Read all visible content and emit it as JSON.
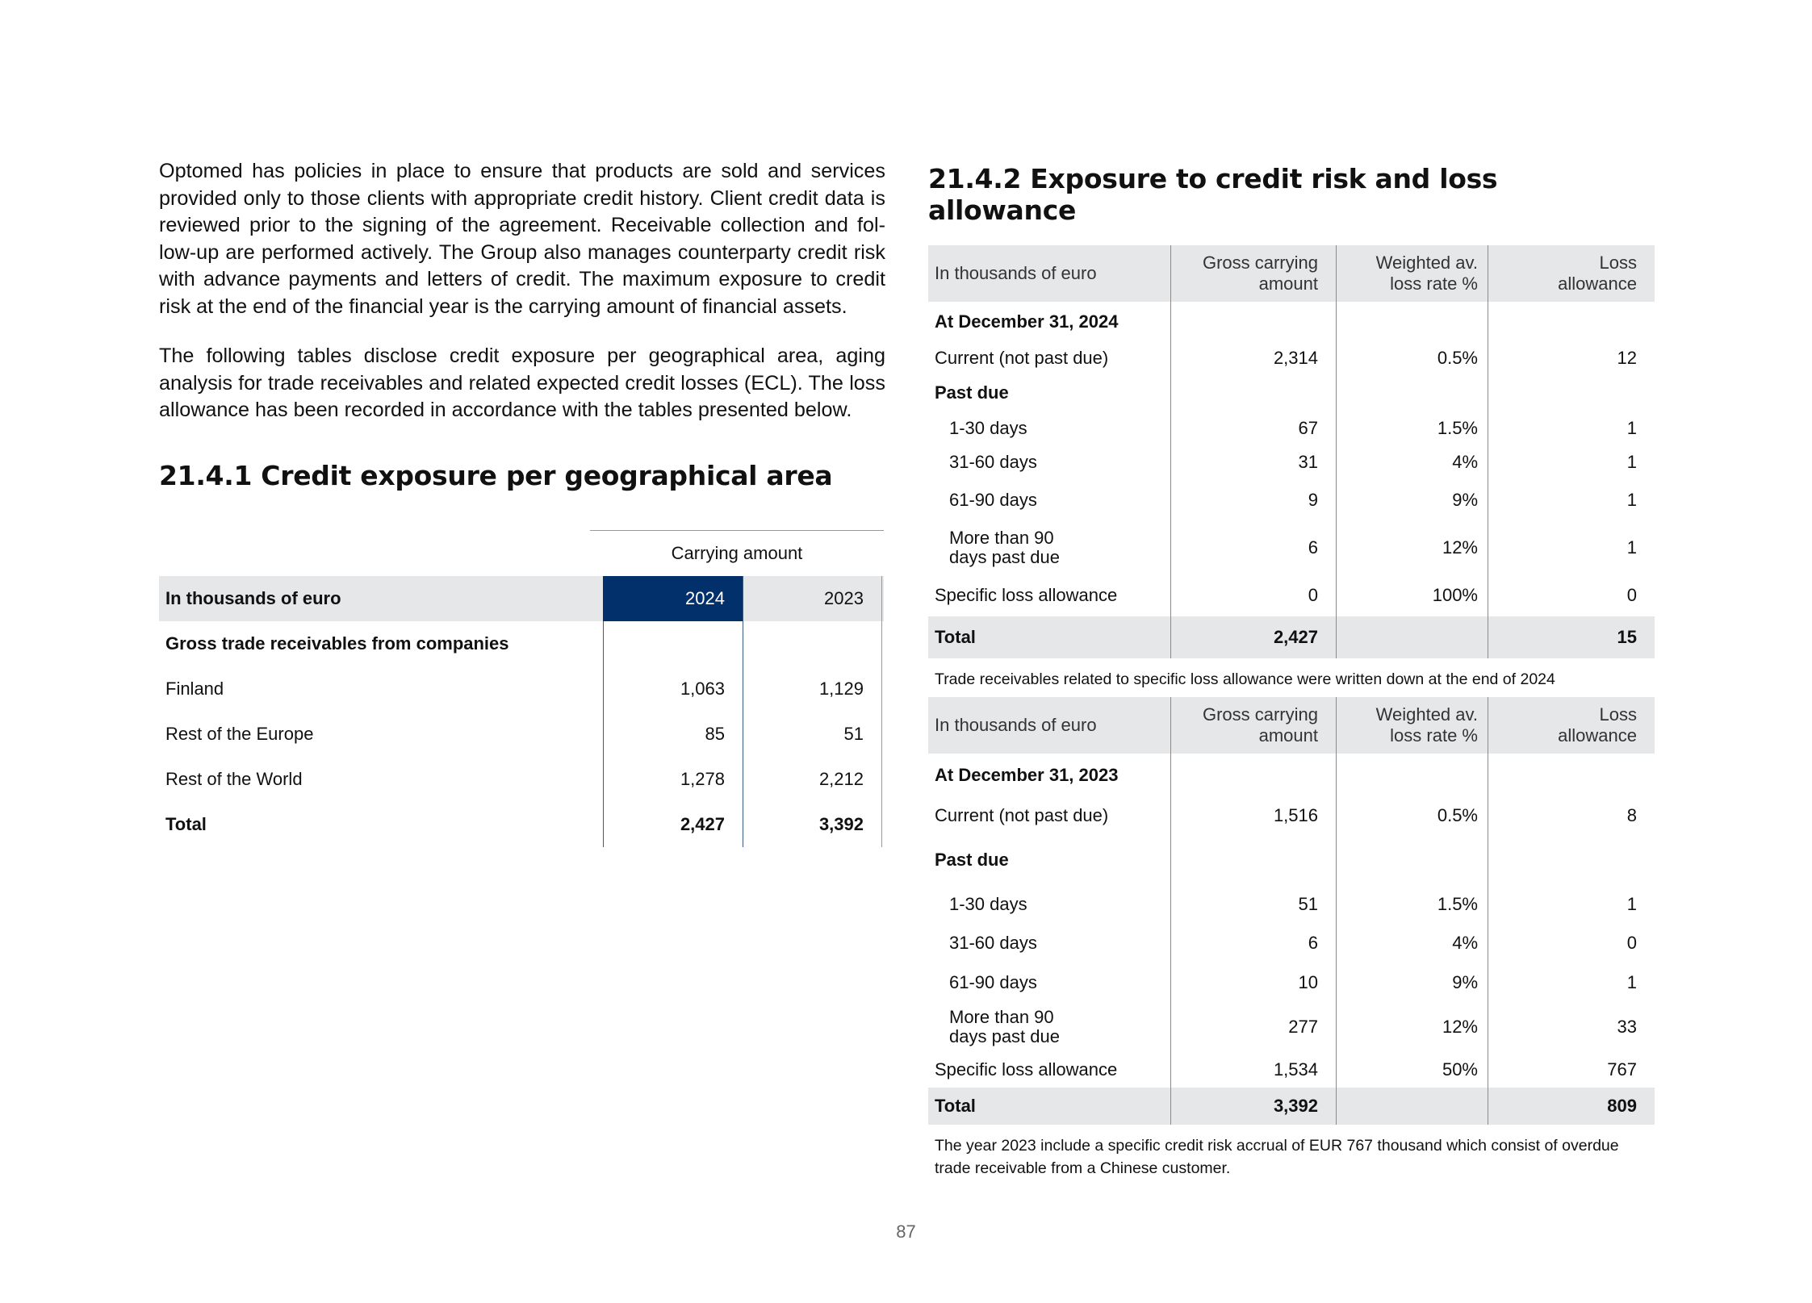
{
  "intro": {
    "p1": "Optomed has policies in place to ensure that products are sold and services provided only to those clients with appropriate credit history. Client credit data is reviewed prior to the signing of the agreement. Receivable collection and fol-low-up are performed actively. The Group also manages counterparty credit risk with advance payments and letters of credit. The maximum exposure to credit risk at the end of the financial year is the carrying amount of financial assets.",
    "p2": "The following tables disclose credit exposure per geographical area, aging analysis for trade receivables and related expected credit losses (ECL). The loss allowance has been recorded in accordance with the tables presented below."
  },
  "geo": {
    "heading": "21.4.1 Credit exposure per geographical area",
    "group_header": "Carrying amount",
    "label_header": "In thousands of euro",
    "col_2024": "2024",
    "col_2023": "2023",
    "section": "Gross trade receivables from companies",
    "rows": [
      {
        "label": "Finland",
        "v2024": "1,063",
        "v2023": "1,129"
      },
      {
        "label": "Rest of the Europe",
        "v2024": "85",
        "v2023": "51"
      },
      {
        "label": "Rest of the World",
        "v2024": "1,278",
        "v2023": "2,212"
      }
    ],
    "total": {
      "label": "Total",
      "v2024": "2,427",
      "v2023": "3,392"
    }
  },
  "loss": {
    "heading": "21.4.2 Exposure to credit risk and loss allowance",
    "headers": {
      "label": "In thousands of euro",
      "gross_1": "Gross carrying",
      "gross_2": "amount",
      "rate_1": "Weighted av.",
      "rate_2": "loss rate %",
      "loss_1": "Loss",
      "loss_2": "allowance"
    },
    "t2024": {
      "date": "At December 31, 2024",
      "current": {
        "label": "Current (not past due)",
        "gross": "2,314",
        "rate": "0.5%",
        "loss": "12"
      },
      "past_due": "Past due",
      "d1": {
        "label": "1-30 days",
        "gross": "67",
        "rate": "1.5%",
        "loss": "1"
      },
      "d2": {
        "label": "31-60 days",
        "gross": "31",
        "rate": "4%",
        "loss": "1"
      },
      "d3": {
        "label": "61-90 days",
        "gross": "9",
        "rate": "9%",
        "loss": "1"
      },
      "d4": {
        "label_1": "More than 90",
        "label_2": "days past due",
        "gross": "6",
        "rate": "12%",
        "loss": "1"
      },
      "specific": {
        "label": "Specific loss allowance",
        "gross": "0",
        "rate": "100%",
        "loss": "0"
      },
      "total": {
        "label": "Total",
        "gross": "2,427",
        "loss": "15"
      },
      "note": "Trade receivables related to specific loss allowance were written down at the end of 2024"
    },
    "t2023": {
      "date": "At December 31, 2023",
      "current": {
        "label": "Current (not past due)",
        "gross": "1,516",
        "rate": "0.5%",
        "loss": "8"
      },
      "past_due": "Past due",
      "d1": {
        "label": "1-30 days",
        "gross": "51",
        "rate": "1.5%",
        "loss": "1"
      },
      "d2": {
        "label": "31-60 days",
        "gross": "6",
        "rate": "4%",
        "loss": "0"
      },
      "d3": {
        "label": "61-90 days",
        "gross": "10",
        "rate": "9%",
        "loss": "1"
      },
      "d4": {
        "label_1": "More than 90",
        "label_2": "days past due",
        "gross": "277",
        "rate": "12%",
        "loss": "33"
      },
      "specific": {
        "label": "Specific loss allowance",
        "gross": "1,534",
        "rate": "50%",
        "loss": "767"
      },
      "total": {
        "label": "Total",
        "gross": "3,392",
        "loss": "809"
      },
      "note": "The year 2023 include a specific credit risk accrual of EUR 767 thousand  which consist of overdue trade receivable from a Chinese customer."
    }
  },
  "page_number": "87"
}
